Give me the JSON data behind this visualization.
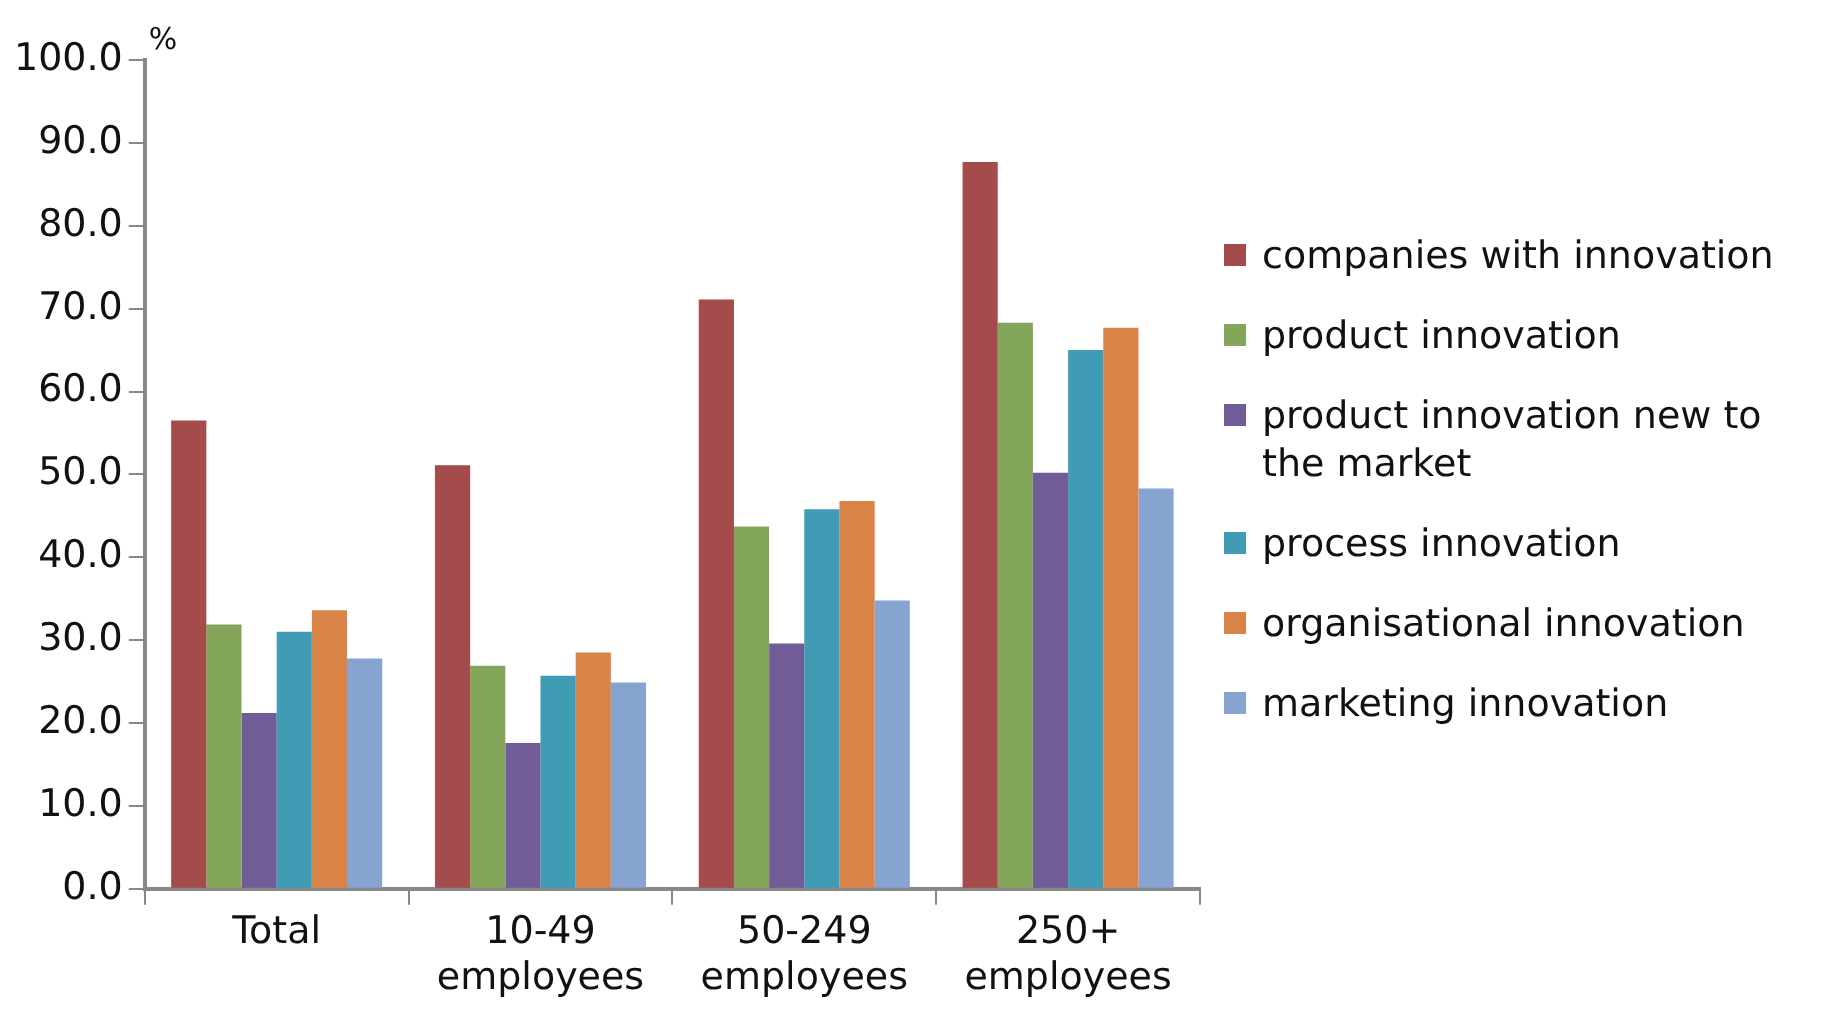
{
  "chart_data": {
    "type": "bar",
    "ylabel": "%",
    "categories": [
      "Total",
      "10-49 employees",
      "50-249 employees",
      "250+ employees"
    ],
    "series": [
      {
        "name": "companies with innovation",
        "color": "#a44b4b",
        "values": [
          56.5,
          51.1,
          71.1,
          87.7
        ]
      },
      {
        "name": "product innovation",
        "color": "#84a65b",
        "values": [
          31.9,
          26.9,
          43.7,
          68.3
        ]
      },
      {
        "name": "product innovation new to the market",
        "color": "#705c96",
        "values": [
          21.2,
          17.6,
          29.6,
          50.2
        ]
      },
      {
        "name": "process innovation",
        "color": "#409bb4",
        "values": [
          31.0,
          25.7,
          45.8,
          65.0
        ]
      },
      {
        "name": "organisational innovation",
        "color": "#d98347",
        "values": [
          33.6,
          28.5,
          46.8,
          67.7
        ]
      },
      {
        "name": "marketing innovation",
        "color": "#87a3cf",
        "values": [
          27.8,
          24.9,
          34.8,
          48.3
        ]
      }
    ],
    "ylim": [
      0,
      100
    ],
    "yticks": [
      {
        "value": 0,
        "label": "0.0"
      },
      {
        "value": 10,
        "label": "10.0"
      },
      {
        "value": 20,
        "label": "20.0"
      },
      {
        "value": 30,
        "label": "30.0"
      },
      {
        "value": 40,
        "label": "40.0"
      },
      {
        "value": 50,
        "label": "50.0"
      },
      {
        "value": 60,
        "label": "60.0"
      },
      {
        "value": 70,
        "label": "70.0"
      },
      {
        "value": 80,
        "label": "80.0"
      },
      {
        "value": 90,
        "label": "90.0"
      },
      {
        "value": 100,
        "label": "100.0"
      }
    ],
    "grid": false,
    "legend": "right"
  }
}
